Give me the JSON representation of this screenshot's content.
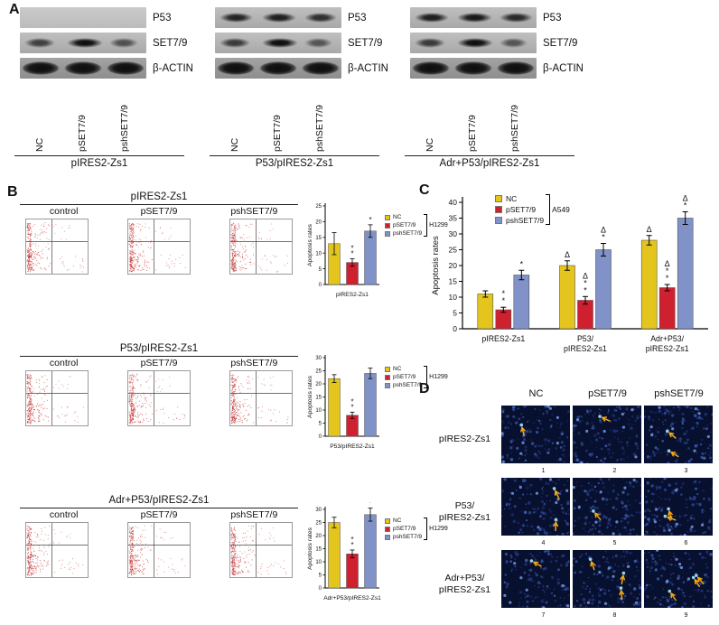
{
  "panel_a": {
    "label": "A",
    "band_labels": [
      "P53",
      "SET7/9",
      "β-ACTIN"
    ],
    "lane_labels": [
      "NC",
      "pSET7/9",
      "pshSET7/9"
    ],
    "groups": [
      {
        "title": "pIRES2-Zs1",
        "bands": [
          [
            0,
            0,
            0
          ],
          [
            0.55,
            1.0,
            0.4
          ],
          [
            0.95,
            0.95,
            0.95
          ]
        ]
      },
      {
        "title": "P53/pIRES2-Zs1",
        "bands": [
          [
            0.8,
            0.85,
            0.7
          ],
          [
            0.6,
            1.0,
            0.35
          ],
          [
            0.95,
            0.95,
            0.95
          ]
        ]
      },
      {
        "title": "Adr+P53/pIRES2-Zs1",
        "bands": [
          [
            0.85,
            0.9,
            0.75
          ],
          [
            0.6,
            1.0,
            0.35
          ],
          [
            0.95,
            0.95,
            0.95
          ]
        ]
      }
    ]
  },
  "panel_b": {
    "label": "B",
    "cell_line": "H1299",
    "plot_col_labels": [
      "control",
      "pSET7/9",
      "pshSET7/9"
    ],
    "legend": [
      {
        "label": "NC",
        "color": "#e3c51d"
      },
      {
        "label": "pSET7/9",
        "color": "#cf2030"
      },
      {
        "label": "pshSET7/9",
        "color": "#8092c8"
      }
    ],
    "rows": [
      {
        "title": "pIRES2-Zs1",
        "chart": {
          "type": "bar",
          "ylabel": "Apoptosis rates",
          "xlabel": "pIRES2-Zs1",
          "ylim": [
            0,
            25
          ],
          "yticks": [
            0,
            5,
            10,
            15,
            20,
            25
          ],
          "categories": [
            "NC",
            "pSET7/9",
            "pshSET7/9"
          ],
          "values": [
            13,
            7,
            17
          ],
          "errors": [
            3.5,
            1.2,
            2
          ],
          "annotations": [
            [],
            [
              "*",
              "*"
            ],
            [
              "*"
            ]
          ]
        }
      },
      {
        "title": "P53/pIRES2-Zs1",
        "chart": {
          "type": "bar",
          "ylabel": "Apoptosis rates",
          "xlabel": "P53/pIRES2-Zs1",
          "ylim": [
            0,
            30
          ],
          "yticks": [
            0,
            5,
            10,
            15,
            20,
            25,
            30
          ],
          "categories": [
            "NC",
            "pSET7/9",
            "pshSET7/9"
          ],
          "values": [
            22,
            8,
            24
          ],
          "errors": [
            1.5,
            1.2,
            2
          ],
          "annotations": [
            [],
            [
              "*",
              "*"
            ],
            []
          ]
        }
      },
      {
        "title": "Adr+P53/pIRES2-Zs1",
        "chart": {
          "type": "bar",
          "ylabel": "Apoptosis rates",
          "xlabel": "Adr+P53/pIRES2-Zs1",
          "ylim": [
            0,
            30
          ],
          "yticks": [
            0,
            5,
            10,
            15,
            20,
            25,
            30
          ],
          "categories": [
            "NC",
            "pSET7/9",
            "pshSET7/9"
          ],
          "values": [
            25,
            13,
            28
          ],
          "errors": [
            2,
            1.5,
            2.5
          ],
          "annotations": [
            [],
            [
              "*",
              "*"
            ],
            [
              "*"
            ]
          ]
        }
      }
    ]
  },
  "panel_c": {
    "label": "C",
    "cell_line": "A549",
    "chart": {
      "type": "grouped_bar",
      "ylabel": "Apoptosis rates",
      "ylim": [
        0,
        40
      ],
      "yticks": [
        0,
        5,
        10,
        15,
        20,
        25,
        30,
        35,
        40
      ],
      "groups": [
        [
          "pIRES2-Zs1"
        ],
        [
          "P53/",
          "pIRES2-Zs1"
        ],
        [
          "Adr+P53/",
          "pIRES2-Zs1"
        ]
      ],
      "series": [
        {
          "name": "NC",
          "color": "#e3c51d",
          "values": [
            11,
            20,
            28
          ],
          "errors": [
            1,
            1.5,
            1.5
          ],
          "annotations": [
            [],
            [
              "Δ"
            ],
            [
              "Δ"
            ]
          ]
        },
        {
          "name": "pSET7/9",
          "color": "#cf2030",
          "values": [
            6,
            9,
            13
          ],
          "errors": [
            0.8,
            1.2,
            1
          ],
          "annotations": [
            [
              "*",
              "*"
            ],
            [
              "Δ",
              "*",
              "*"
            ],
            [
              "Δ",
              "*",
              "*"
            ]
          ]
        },
        {
          "name": "pshSET7/9",
          "color": "#8092c8",
          "values": [
            17,
            25,
            35
          ],
          "errors": [
            1.5,
            2,
            2
          ],
          "annotations": [
            [
              "*"
            ],
            [
              "Δ",
              "*"
            ],
            [
              "Δ",
              "*"
            ]
          ]
        }
      ]
    }
  },
  "panel_d": {
    "label": "D",
    "col_headers": [
      "NC",
      "pSET7/9",
      "pshSET7/9"
    ],
    "row_labels": [
      [
        "pIRES2-Zs1"
      ],
      [
        "P53/",
        "pIRES2-Zs1"
      ],
      [
        "Adr+P53/",
        "pIRES2-Zs1"
      ]
    ],
    "image_numbers": [
      "1",
      "2",
      "3",
      "4",
      "5",
      "6",
      "7",
      "8",
      "9"
    ],
    "arrow_counts": [
      1,
      1,
      2,
      2,
      1,
      2,
      1,
      3,
      3
    ]
  }
}
